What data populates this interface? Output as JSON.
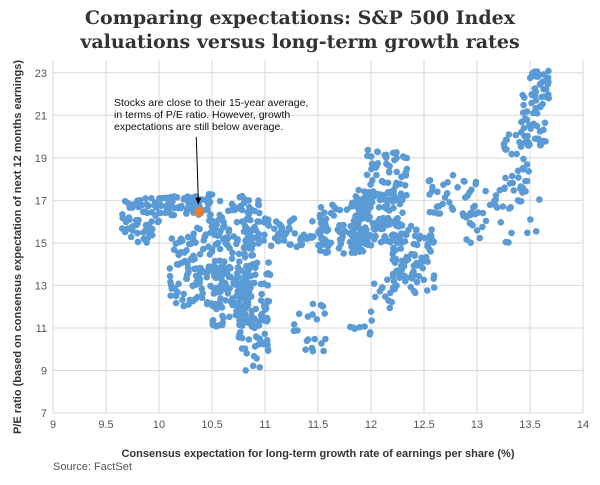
{
  "chart_data": {
    "type": "scatter",
    "title_lines": [
      "Comparing expectations: S&P 500 Index",
      "valuations versus long-term growth rates"
    ],
    "xlabel": "Consensus expectation for long-term growth rate of earnings per share (%)",
    "ylabel": "P/E ratio (based on consensus expectation of next 12 months earnings)",
    "xlim": [
      9,
      14
    ],
    "ylim": [
      7,
      23.6
    ],
    "x_ticks": [
      "9",
      "9.5",
      "10",
      "10.5",
      "11",
      "11.5",
      "12",
      "12.5",
      "13",
      "13.5",
      "14"
    ],
    "y_ticks": [
      "7",
      "9",
      "11",
      "13",
      "15",
      "17",
      "19",
      "21",
      "23"
    ],
    "grid": true,
    "colors": {
      "series": "#5b9bd5",
      "highlight": "#ed7d31",
      "grid": "#d9d9d9"
    },
    "annotation": {
      "lines": [
        "Stocks are close to their 15-year average,",
        "in terms of P/E ratio. However, growth",
        "expectations are still below average."
      ],
      "arrow_to": [
        10.38,
        16.8
      ]
    },
    "highlight_point": {
      "x": 10.38,
      "y": 16.45
    },
    "clusters": [
      {
        "x": [
          9.65,
          10.0
        ],
        "y": [
          15.0,
          17.1
        ],
        "n": 60
      },
      {
        "x": [
          9.95,
          10.5
        ],
        "y": [
          16.3,
          17.2
        ],
        "n": 70
      },
      {
        "x": [
          10.45,
          10.95
        ],
        "y": [
          15.8,
          17.3
        ],
        "n": 40
      },
      {
        "x": [
          10.1,
          10.9
        ],
        "y": [
          12.0,
          15.8
        ],
        "n": 200
      },
      {
        "x": [
          10.5,
          11.05
        ],
        "y": [
          11.0,
          14.2
        ],
        "n": 110
      },
      {
        "x": [
          10.75,
          11.05
        ],
        "y": [
          9.0,
          11.8
        ],
        "n": 35
      },
      {
        "x": [
          10.8,
          11.6
        ],
        "y": [
          14.8,
          16.2
        ],
        "n": 80
      },
      {
        "x": [
          11.2,
          11.6
        ],
        "y": [
          9.9,
          12.2
        ],
        "n": 20
      },
      {
        "x": [
          11.5,
          12.0
        ],
        "y": [
          14.5,
          16.8
        ],
        "n": 90
      },
      {
        "x": [
          11.8,
          12.3
        ],
        "y": [
          15.0,
          17.5
        ],
        "n": 120
      },
      {
        "x": [
          11.95,
          12.35
        ],
        "y": [
          17.0,
          19.4
        ],
        "n": 60
      },
      {
        "x": [
          12.2,
          12.6
        ],
        "y": [
          12.6,
          15.8
        ],
        "n": 90
      },
      {
        "x": [
          12.0,
          12.25
        ],
        "y": [
          11.5,
          13.5
        ],
        "n": 15
      },
      {
        "x": [
          11.8,
          12.05
        ],
        "y": [
          10.3,
          11.5
        ],
        "n": 8
      },
      {
        "x": [
          12.5,
          13.0
        ],
        "y": [
          16.2,
          18.2
        ],
        "n": 35
      },
      {
        "x": [
          12.9,
          13.6
        ],
        "y": [
          15.0,
          17.6
        ],
        "n": 45
      },
      {
        "x": [
          13.25,
          13.5
        ],
        "y": [
          17.5,
          20.2
        ],
        "n": 30
      },
      {
        "x": [
          13.4,
          13.65
        ],
        "y": [
          19.5,
          22.0
        ],
        "n": 40
      },
      {
        "x": [
          13.5,
          13.68
        ],
        "y": [
          21.8,
          23.1
        ],
        "n": 30
      }
    ]
  },
  "footer": {
    "source": "Source: FactSet"
  }
}
